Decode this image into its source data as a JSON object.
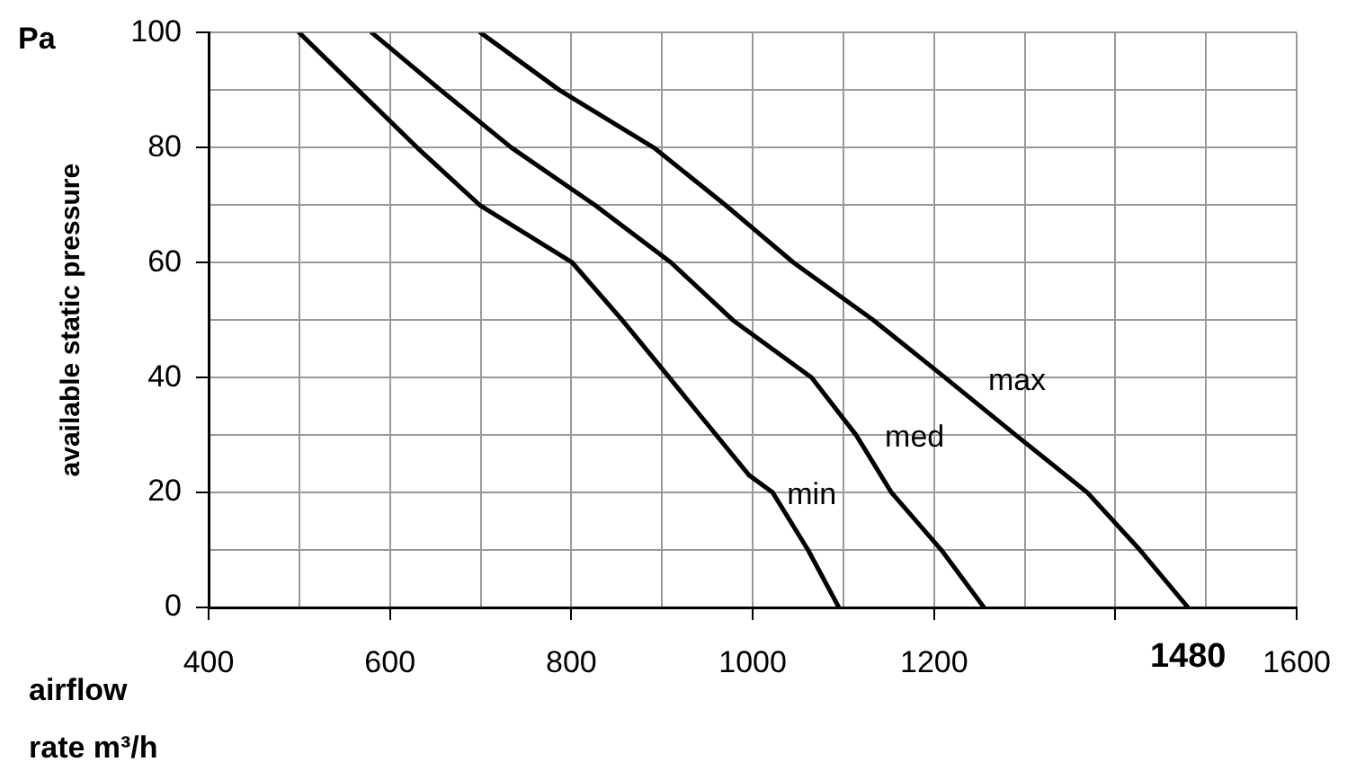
{
  "chart_data": {
    "type": "line",
    "xlabel": "airflow rate m³/h",
    "ylabel": "available static pressure",
    "xlim": [
      400,
      1600
    ],
    "ylim": [
      0,
      100
    ],
    "xticks": [
      400,
      {
        "value": 500,
        "label": null
      },
      600,
      {
        "value": 700,
        "label": null
      },
      800,
      {
        "value": 900,
        "label": null
      },
      1000,
      {
        "value": 1100,
        "label": null
      },
      1200,
      {
        "value": 1300,
        "label": null
      },
      {
        "value": 1400,
        "label": null
      },
      {
        "value": 1500,
        "label": null
      },
      1600
    ],
    "yticks": [
      0,
      {
        "value": 10,
        "label": null
      },
      20,
      {
        "value": 30,
        "label": null
      },
      40,
      {
        "value": 50,
        "label": null
      },
      60,
      {
        "value": 70,
        "label": null
      },
      80,
      {
        "value": 90,
        "label": null
      },
      100
    ],
    "grid": true,
    "legend": false,
    "marker": "none",
    "line_style": "solid",
    "series": [
      {
        "name": "min",
        "color": "#000000",
        "x": [
          500,
          565,
          630,
          699,
          801,
          856,
          908,
          996,
          1022,
          1061,
          1095
        ],
        "values": [
          100,
          90,
          80,
          70,
          60,
          50,
          40,
          23,
          20,
          10,
          0
        ]
      },
      {
        "name": "med",
        "color": "#000000",
        "x": [
          580,
          656,
          734,
          826,
          910,
          978,
          1065,
          1114,
          1153,
          1208,
          1255
        ],
        "values": [
          100,
          90,
          80,
          70,
          60,
          50,
          40,
          30,
          20,
          10,
          0
        ]
      },
      {
        "name": "max",
        "color": "#000000",
        "x": [
          700,
          787,
          891,
          970,
          1045,
          1133,
          1212,
          1290,
          1369,
          1427,
          1480
        ],
        "values": [
          100,
          90,
          80,
          70,
          60,
          50,
          40,
          30,
          20,
          10,
          0
        ]
      }
    ],
    "annotations": [
      "Pa",
      {
        "text": "1480",
        "x": 1480,
        "y": 0
      }
    ]
  }
}
